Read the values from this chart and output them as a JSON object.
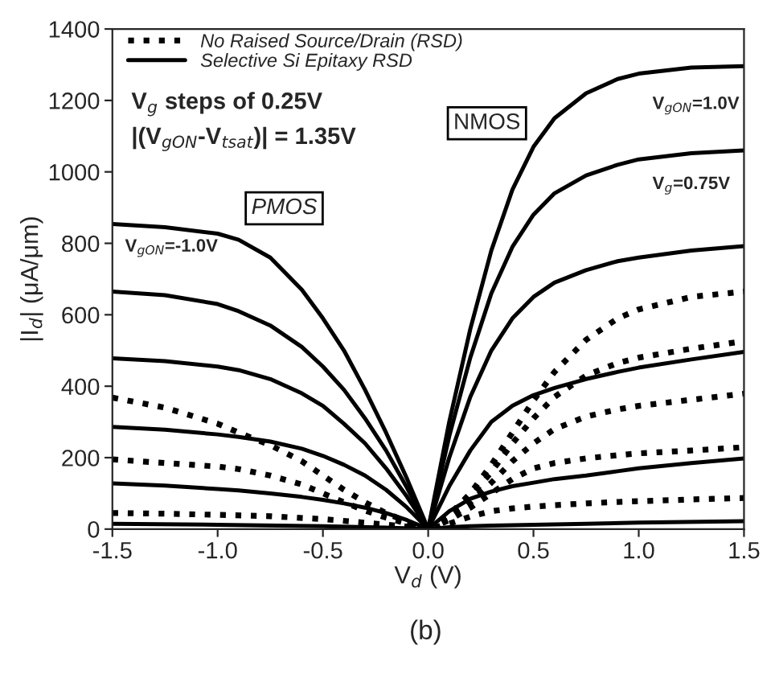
{
  "chart_data": {
    "type": "line",
    "xlabel": "V$_{d}$ (V)",
    "ylabel": "|I$_{d}$| (μA/μm)",
    "xlim": [
      -1.5,
      1.5
    ],
    "ylim": [
      0,
      1400
    ],
    "xticks": [
      -1.5,
      {
        "value": -1,
        "label": "-1.0"
      },
      -0.5,
      {
        "value": 0,
        "label": "0.0"
      },
      0.5,
      {
        "value": 1,
        "label": "1.0"
      },
      1.5
    ],
    "yticks": [
      0,
      200,
      400,
      600,
      800,
      1000,
      1200,
      1400
    ],
    "grid": false,
    "legend": "top left",
    "marker": "none",
    "annotations": [
      "V$_{g}$ steps of 0.25V",
      "|(V$_{gON}$-V$_{tsat}$)| = 1.35V",
      "NMOS",
      "PMOS",
      "(b)",
      "V$_{gON}$=1.0V",
      "V$_{g}$=0.75V",
      "V$_{gON}$=-1.0V"
    ],
    "series": [
      {
        "name": "No Raised Source/Drain (RSD)",
        "color": "#000000",
        "line_style": "dotted",
        "x": [
          0,
          0.1,
          0.2,
          0.3,
          0.4,
          0.5,
          0.6,
          0.75,
          0.9,
          1.0,
          1.25,
          1.5
        ],
        "values": [
          0,
          40,
          100,
          180,
          270,
          360,
          440,
          530,
          590,
          615,
          650,
          665
        ]
      },
      {
        "name": "Selective Si Epitaxy RSD",
        "color": "#000000",
        "line_style": "solid",
        "x": [
          0,
          0.1,
          0.2,
          0.3,
          0.4,
          0.5,
          0.6,
          0.75,
          0.9,
          1.0,
          1.25,
          1.5
        ],
        "values": [
          0,
          300,
          560,
          780,
          950,
          1070,
          1150,
          1220,
          1260,
          1275,
          1292,
          1296
        ]
      },
      {
        "color": "#000000",
        "line_style": "solid",
        "x": [
          0,
          0.1,
          0.2,
          0.3,
          0.4,
          0.5,
          0.6,
          0.75,
          0.9,
          1.0,
          1.25,
          1.5
        ],
        "values": [
          0,
          260,
          480,
          660,
          790,
          880,
          940,
          990,
          1020,
          1035,
          1052,
          1060
        ]
      },
      {
        "color": "#000000",
        "line_style": "solid",
        "x": [
          0,
          0.1,
          0.2,
          0.3,
          0.4,
          0.5,
          0.6,
          0.75,
          0.9,
          1.0,
          1.25,
          1.5
        ],
        "values": [
          0,
          200,
          370,
          500,
          590,
          650,
          690,
          725,
          750,
          760,
          780,
          792
        ]
      },
      {
        "color": "#000000",
        "line_style": "solid",
        "x": [
          0,
          0.1,
          0.2,
          0.3,
          0.4,
          0.5,
          0.6,
          0.75,
          0.9,
          1.0,
          1.25,
          1.5
        ],
        "values": [
          0,
          120,
          220,
          300,
          345,
          375,
          395,
          420,
          440,
          452,
          475,
          496
        ]
      },
      {
        "color": "#000000",
        "line_style": "solid",
        "x": [
          0,
          0.1,
          0.2,
          0.3,
          0.4,
          0.5,
          0.6,
          0.75,
          0.9,
          1.0,
          1.25,
          1.5
        ],
        "values": [
          0,
          50,
          85,
          105,
          120,
          130,
          140,
          150,
          162,
          170,
          185,
          198
        ]
      },
      {
        "color": "#000000",
        "line_style": "solid",
        "x": [
          -1.5,
          -1.0,
          -0.5,
          -0.2,
          0,
          0.1,
          0.2,
          0.3,
          0.5,
          0.75,
          1.0,
          1.5
        ],
        "values": [
          15,
          12,
          8,
          4,
          0,
          5,
          8,
          10,
          12,
          15,
          18,
          22
        ]
      },
      {
        "color": "#000000",
        "line_style": "dotted",
        "x": [
          0,
          0.1,
          0.2,
          0.3,
          0.4,
          0.5,
          0.6,
          0.75,
          0.9,
          1.0,
          1.25,
          1.5
        ],
        "values": [
          0,
          35,
          90,
          160,
          240,
          310,
          370,
          430,
          465,
          480,
          505,
          526
        ]
      },
      {
        "color": "#000000",
        "line_style": "dotted",
        "x": [
          0,
          0.1,
          0.2,
          0.3,
          0.4,
          0.5,
          0.6,
          0.75,
          0.9,
          1.0,
          1.25,
          1.5
        ],
        "values": [
          0,
          30,
          75,
          130,
          190,
          240,
          280,
          315,
          335,
          345,
          362,
          379
        ]
      },
      {
        "color": "#000000",
        "line_style": "dotted",
        "x": [
          0,
          0.1,
          0.2,
          0.3,
          0.4,
          0.5,
          0.6,
          0.75,
          0.9,
          1.0,
          1.25,
          1.5
        ],
        "values": [
          0,
          25,
          60,
          100,
          140,
          170,
          185,
          198,
          207,
          212,
          220,
          229
        ]
      },
      {
        "color": "#000000",
        "line_style": "dotted",
        "x": [
          -1.5,
          -1.25,
          -1.0,
          -0.75,
          -0.5,
          -0.3,
          -0.1,
          0,
          0.1,
          0.2,
          0.3,
          0.4,
          0.5,
          0.6,
          0.75,
          0.9,
          1.0,
          1.25,
          1.5
        ],
        "values": [
          45,
          43,
          40,
          36,
          28,
          18,
          7,
          0,
          15,
          35,
          50,
          58,
          63,
          67,
          72,
          76,
          78,
          83,
          87
        ]
      },
      {
        "color": "#000000",
        "line_style": "solid",
        "x": [
          -1.5,
          -1.25,
          -1.0,
          -0.9,
          -0.75,
          -0.6,
          -0.5,
          -0.4,
          -0.3,
          -0.2,
          -0.1,
          0
        ],
        "values": [
          854,
          845,
          827,
          810,
          760,
          670,
          590,
          500,
          390,
          270,
          140,
          0
        ]
      },
      {
        "color": "#000000",
        "line_style": "solid",
        "x": [
          -1.5,
          -1.25,
          -1.0,
          -0.9,
          -0.75,
          -0.6,
          -0.5,
          -0.4,
          -0.3,
          -0.2,
          -0.1,
          0
        ],
        "values": [
          665,
          655,
          630,
          610,
          570,
          510,
          455,
          390,
          310,
          220,
          115,
          0
        ]
      },
      {
        "color": "#000000",
        "line_style": "solid",
        "x": [
          -1.5,
          -1.25,
          -1.0,
          -0.9,
          -0.75,
          -0.6,
          -0.5,
          -0.4,
          -0.3,
          -0.2,
          -0.1,
          0
        ],
        "values": [
          478,
          470,
          455,
          445,
          420,
          380,
          345,
          295,
          240,
          170,
          90,
          0
        ]
      },
      {
        "color": "#000000",
        "line_style": "solid",
        "x": [
          -1.5,
          -1.25,
          -1.0,
          -0.9,
          -0.75,
          -0.6,
          -0.5,
          -0.4,
          -0.3,
          -0.2,
          -0.1,
          0
        ],
        "values": [
          286,
          278,
          265,
          258,
          245,
          225,
          205,
          180,
          150,
          110,
          60,
          0
        ]
      },
      {
        "color": "#000000",
        "line_style": "solid",
        "x": [
          -1.5,
          -1.25,
          -1.0,
          -0.9,
          -0.75,
          -0.6,
          -0.5,
          -0.4,
          -0.3,
          -0.2,
          -0.1,
          0
        ],
        "values": [
          128,
          122,
          112,
          108,
          100,
          90,
          82,
          72,
          60,
          45,
          25,
          0
        ]
      },
      {
        "color": "#000000",
        "line_style": "dotted",
        "x": [
          -1.5,
          -1.25,
          -1.0,
          -0.9,
          -0.75,
          -0.6,
          -0.5,
          -0.4,
          -0.3,
          -0.2,
          -0.1,
          0
        ],
        "values": [
          368,
          340,
          295,
          270,
          235,
          190,
          150,
          110,
          75,
          45,
          20,
          0
        ]
      },
      {
        "color": "#000000",
        "line_style": "dotted",
        "x": [
          -1.5,
          -1.25,
          -1.0,
          -0.9,
          -0.75,
          -0.6,
          -0.5,
          -0.4,
          -0.3,
          -0.2,
          -0.1,
          0
        ],
        "values": [
          195,
          185,
          175,
          168,
          150,
          125,
          100,
          75,
          52,
          32,
          15,
          0
        ]
      }
    ]
  }
}
